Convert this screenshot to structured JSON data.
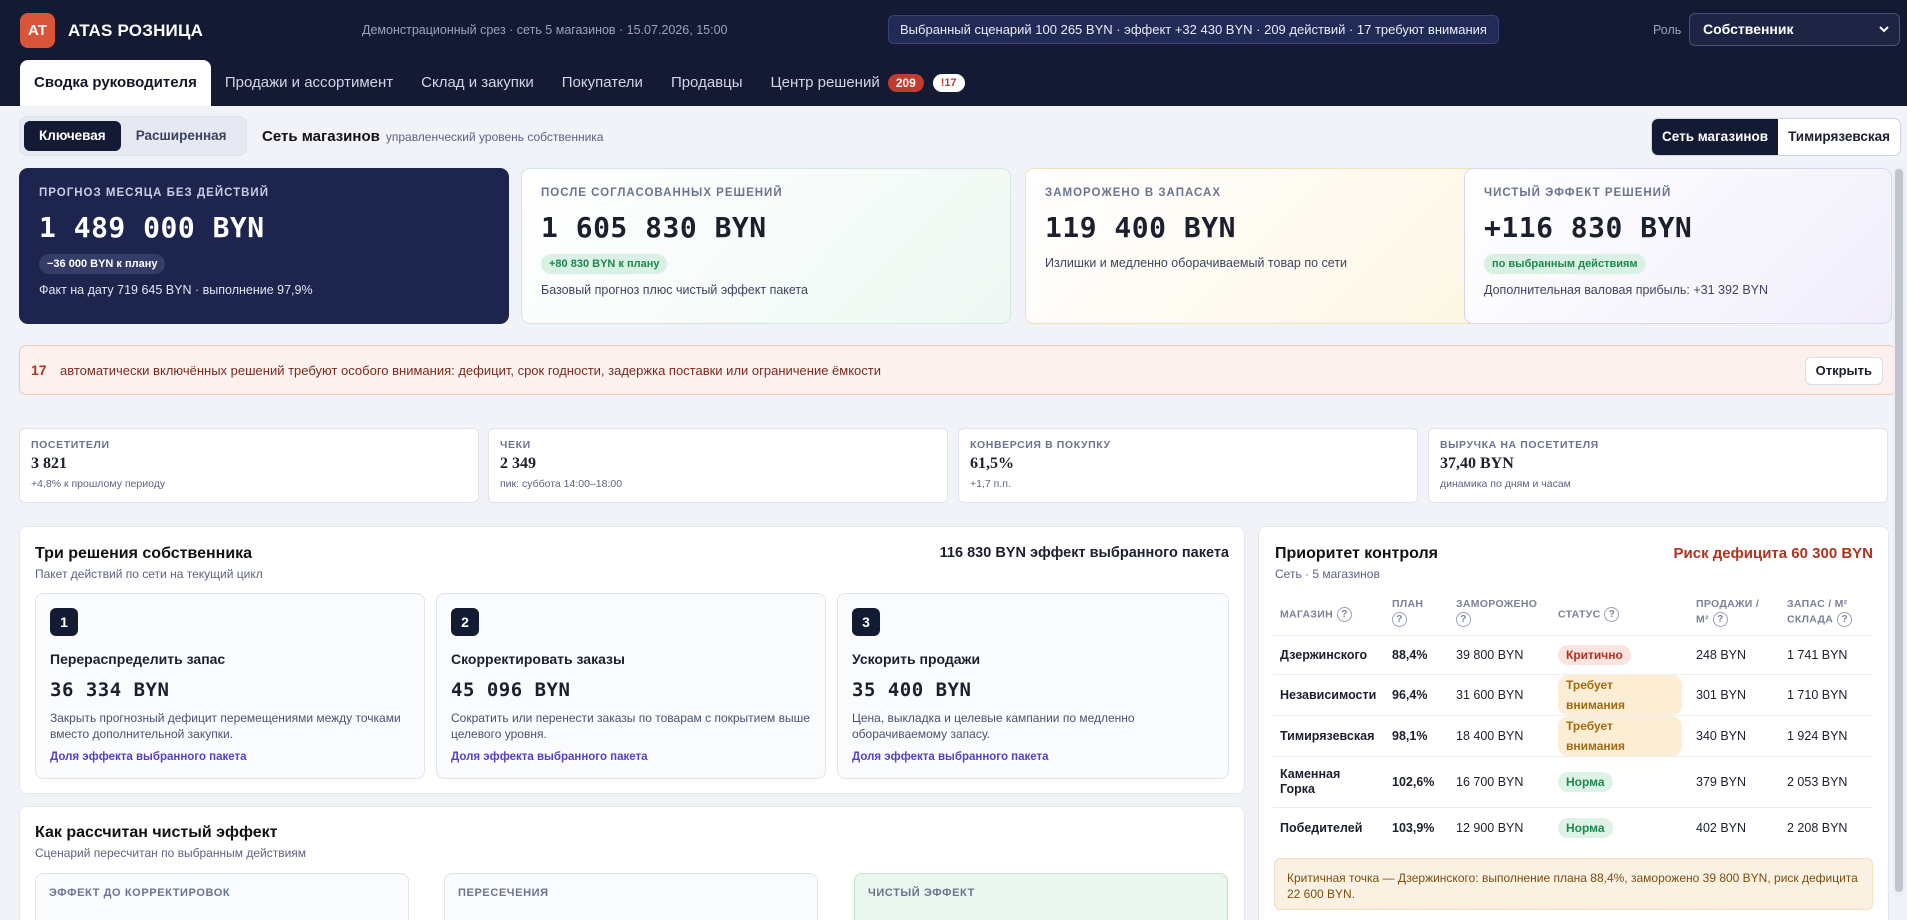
{
  "app": {
    "logo": "AT",
    "name": "ATAS РОЗНИЦА",
    "subtitle": "Демонстрационный срез · сеть 5 магазинов · 15.07.2026, 15:00",
    "scenario": "Выбранный сценарий 100 265 BYN · эффект +32 430 BYN · 209 действий · 17 требуют внимания",
    "role_label": "Роль",
    "role_value": "Собственник"
  },
  "tabs": [
    {
      "label": "Сводка руководителя"
    },
    {
      "label": "Продажи и ассортимент"
    },
    {
      "label": "Склад и закупки"
    },
    {
      "label": "Покупатели"
    },
    {
      "label": "Продавцы"
    },
    {
      "label": "Центр решений",
      "badge": "209",
      "badge2": "!17"
    }
  ],
  "toolbar": {
    "mode_key": "Ключевая",
    "mode_ext": "Расширенная",
    "section_title": "Сеть магазинов",
    "section_sub": "управленческий уровень собственника",
    "scope_network": "Сеть магазинов",
    "scope_store": "Тимирязевская"
  },
  "kpis": [
    {
      "label": "ПРОГНОЗ МЕСЯЦА БЕЗ ДЕЙСТВИЙ",
      "value": "1 489 000 BYN",
      "pill": "−36 000 BYN к плану",
      "note": "Факт на дату 719 645 BYN · выполнение 97,9%"
    },
    {
      "label": "ПОСЛЕ СОГЛАСОВАННЫХ РЕШЕНИЙ",
      "value": "1 605 830 BYN",
      "pill": "+80 830 BYN к плану",
      "note": "Базовый прогноз плюс чистый эффект пакета"
    },
    {
      "label": "ЗАМОРОЖЕНО В ЗАПАСАХ",
      "value": "119 400 BYN",
      "note": "Излишки и медленно оборачиваемый товар по сети"
    },
    {
      "label": "ЧИСТЫЙ ЭФФЕКТ РЕШЕНИЙ",
      "value": "+116 830 BYN",
      "pill": "по выбранным действиям",
      "note": "Дополнительная валовая прибыль: +31 392 BYN"
    }
  ],
  "alert": {
    "count": "17",
    "text": "автоматически включённых решений требуют особого внимания: дефицит, срок годности, задержка поставки или ограничение ёмкости",
    "button": "Открыть"
  },
  "metrics": [
    {
      "label": "ПОСЕТИТЕЛИ",
      "value": "3 821",
      "sub": "+4,8% к прошлому периоду"
    },
    {
      "label": "ЧЕКИ",
      "value": "2 349",
      "sub": "пик: суббота 14:00–18:00"
    },
    {
      "label": "КОНВЕРСИЯ В ПОКУПКУ",
      "value": "61,5%",
      "sub": "+1,7 п.п."
    },
    {
      "label": "ВЫРУЧКА НА ПОСЕТИТЕЛЯ",
      "value": "37,40 BYN",
      "sub": "динамика по дням и часам"
    }
  ],
  "decisions": {
    "title": "Три решения собственника",
    "subtitle": "Пакет действий по сети на текущий цикл",
    "effect": "116 830 BYN эффект выбранного пакета",
    "items": [
      {
        "num": "1",
        "title": "Перераспределить запас",
        "value": "36 334 BYN",
        "desc": "Закрыть прогнозный дефицит перемещениями между точками вместо дополнительной закупки.",
        "link": "Доля эффекта выбранного пакета"
      },
      {
        "num": "2",
        "title": "Скорректировать заказы",
        "value": "45 096 BYN",
        "desc": "Сократить или перенести заказы по товарам с покрытием выше целевого уровня.",
        "link": "Доля эффекта выбранного пакета"
      },
      {
        "num": "3",
        "title": "Ускорить продажи",
        "value": "35 400 BYN",
        "desc": "Цена, выкладка и целевые кампании по медленно оборачиваемому запасу.",
        "link": "Доля эффекта выбранного пакета"
      }
    ]
  },
  "priority": {
    "title": "Приоритет контроля",
    "subtitle": "Сеть · 5 магазинов",
    "risk": "Риск дефицита 60 300 BYN",
    "columns": {
      "store": "МАГАЗИН",
      "plan": "ПЛАН",
      "frozen": "ЗАМОРОЖЕНО",
      "status": "СТАТУС",
      "sales1": "ПРОДАЖИ /",
      "sales2": "М²",
      "stock1": "ЗАПАС / М²",
      "stock2": "СКЛАДА"
    },
    "rows": [
      {
        "store": "Дзержинского",
        "plan": "88,4%",
        "frozen": "39 800 BYN",
        "status": "Критично",
        "sales": "248 BYN",
        "stock": "1 741 BYN"
      },
      {
        "store": "Независимости",
        "plan": "96,4%",
        "frozen": "31 600 BYN",
        "status": "Требует внимания",
        "sales": "301 BYN",
        "stock": "1 710 BYN"
      },
      {
        "store": "Тимирязевская",
        "plan": "98,1%",
        "frozen": "18 400 BYN",
        "status": "Требует внимания",
        "sales": "340 BYN",
        "stock": "1 924 BYN"
      },
      {
        "store": "Каменная Горка",
        "plan": "102,6%",
        "frozen": "16 700 BYN",
        "status": "Норма",
        "sales": "379 BYN",
        "stock": "2 053 BYN"
      },
      {
        "store": "Победителей",
        "plan": "103,9%",
        "frozen": "12 900 BYN",
        "status": "Норма",
        "sales": "402 BYN",
        "stock": "2 208 BYN"
      }
    ],
    "callout": "Критичная точка — Дзержинского: выполнение плана 88,4%, заморожено 39 800 BYN, риск дефицита 22 600 BYN."
  },
  "calc": {
    "title": "Как рассчитан чистый эффект",
    "subtitle": "Сценарий пересчитан по выбранным действиям",
    "cards": [
      "ЭФФЕКТ ДО КОРРЕКТИРОВОК",
      "ПЕРЕСЕЧЕНИЯ",
      "ЧИСТЫЙ ЭФФЕКТ"
    ]
  },
  "colors": {
    "header_bg": "#141a33",
    "accent_logo": "#d8553a",
    "critical": "#b0331f",
    "warning": "#a06a10",
    "ok": "#1f8750",
    "link": "#5a3fc0"
  }
}
